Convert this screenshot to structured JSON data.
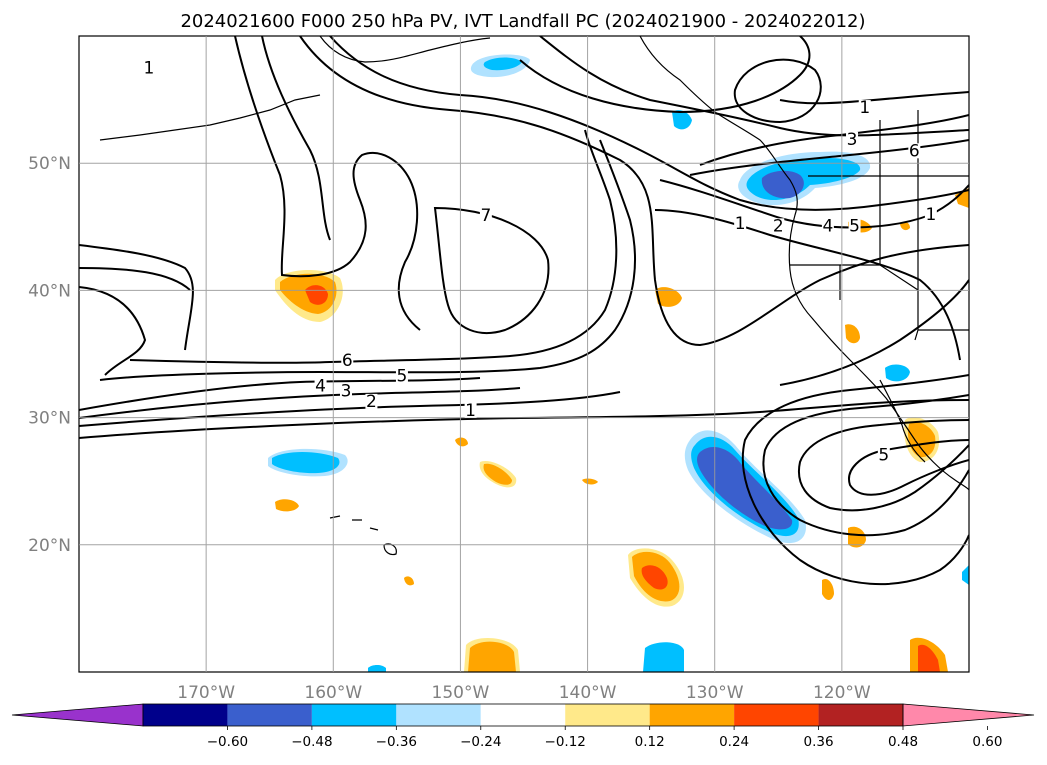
{
  "title": "2024021600 F000 250 hPa PV, IVT Landfall PC (2024021900 - 2024022012)",
  "map": {
    "lon_range": [
      -180,
      -110
    ],
    "lat_range": [
      10,
      60
    ],
    "lat_ticks": [
      {
        "value": 50,
        "label": "50°N"
      },
      {
        "value": 40,
        "label": "40°N"
      },
      {
        "value": 30,
        "label": "30°N"
      },
      {
        "value": 20,
        "label": "20°N"
      }
    ],
    "lon_ticks": [
      {
        "value": -170,
        "label": "170°W"
      },
      {
        "value": -160,
        "label": "160°W"
      },
      {
        "value": -150,
        "label": "150°W"
      },
      {
        "value": -140,
        "label": "140°W"
      },
      {
        "value": -130,
        "label": "130°W"
      },
      {
        "value": -120,
        "label": "120°W"
      }
    ],
    "gridlines": true
  },
  "colorbar": {
    "colors": [
      "#9932cc",
      "#00008b",
      "#3a5fcd",
      "#00bfff",
      "#b0e2ff",
      "#ffffff",
      "#ffe98a",
      "#ffa500",
      "#ff4500",
      "#b22222",
      "#ff88aa"
    ],
    "ticks": [
      "−0.60",
      "−0.48",
      "−0.36",
      "−0.24",
      "−0.12",
      "0.12",
      "0.24",
      "0.36",
      "0.48",
      "0.60"
    ]
  },
  "contour_labels": [
    {
      "text": "1",
      "lon": -174.5,
      "lat": 57.2
    },
    {
      "text": "1",
      "lon": -118.2,
      "lat": 54.1
    },
    {
      "text": "3",
      "lon": -119.2,
      "lat": 51.6
    },
    {
      "text": "6",
      "lon": -114.3,
      "lat": 50.7
    },
    {
      "text": "1",
      "lon": -113.0,
      "lat": 45.7
    },
    {
      "text": "7",
      "lon": -148.0,
      "lat": 45.6
    },
    {
      "text": "1",
      "lon": -128.0,
      "lat": 45.0
    },
    {
      "text": "2",
      "lon": -125.0,
      "lat": 44.8
    },
    {
      "text": "4",
      "lon": -121.1,
      "lat": 44.8
    },
    {
      "text": "5",
      "lon": -119.0,
      "lat": 44.8
    },
    {
      "text": "6",
      "lon": -158.9,
      "lat": 34.2
    },
    {
      "text": "5",
      "lon": -154.6,
      "lat": 33.0
    },
    {
      "text": "4",
      "lon": -161.0,
      "lat": 32.2
    },
    {
      "text": "3",
      "lon": -159.0,
      "lat": 31.8
    },
    {
      "text": "2",
      "lon": -157.0,
      "lat": 31.0
    },
    {
      "text": "1",
      "lon": -149.2,
      "lat": 30.3
    },
    {
      "text": "5",
      "lon": -116.7,
      "lat": 26.8
    }
  ]
}
